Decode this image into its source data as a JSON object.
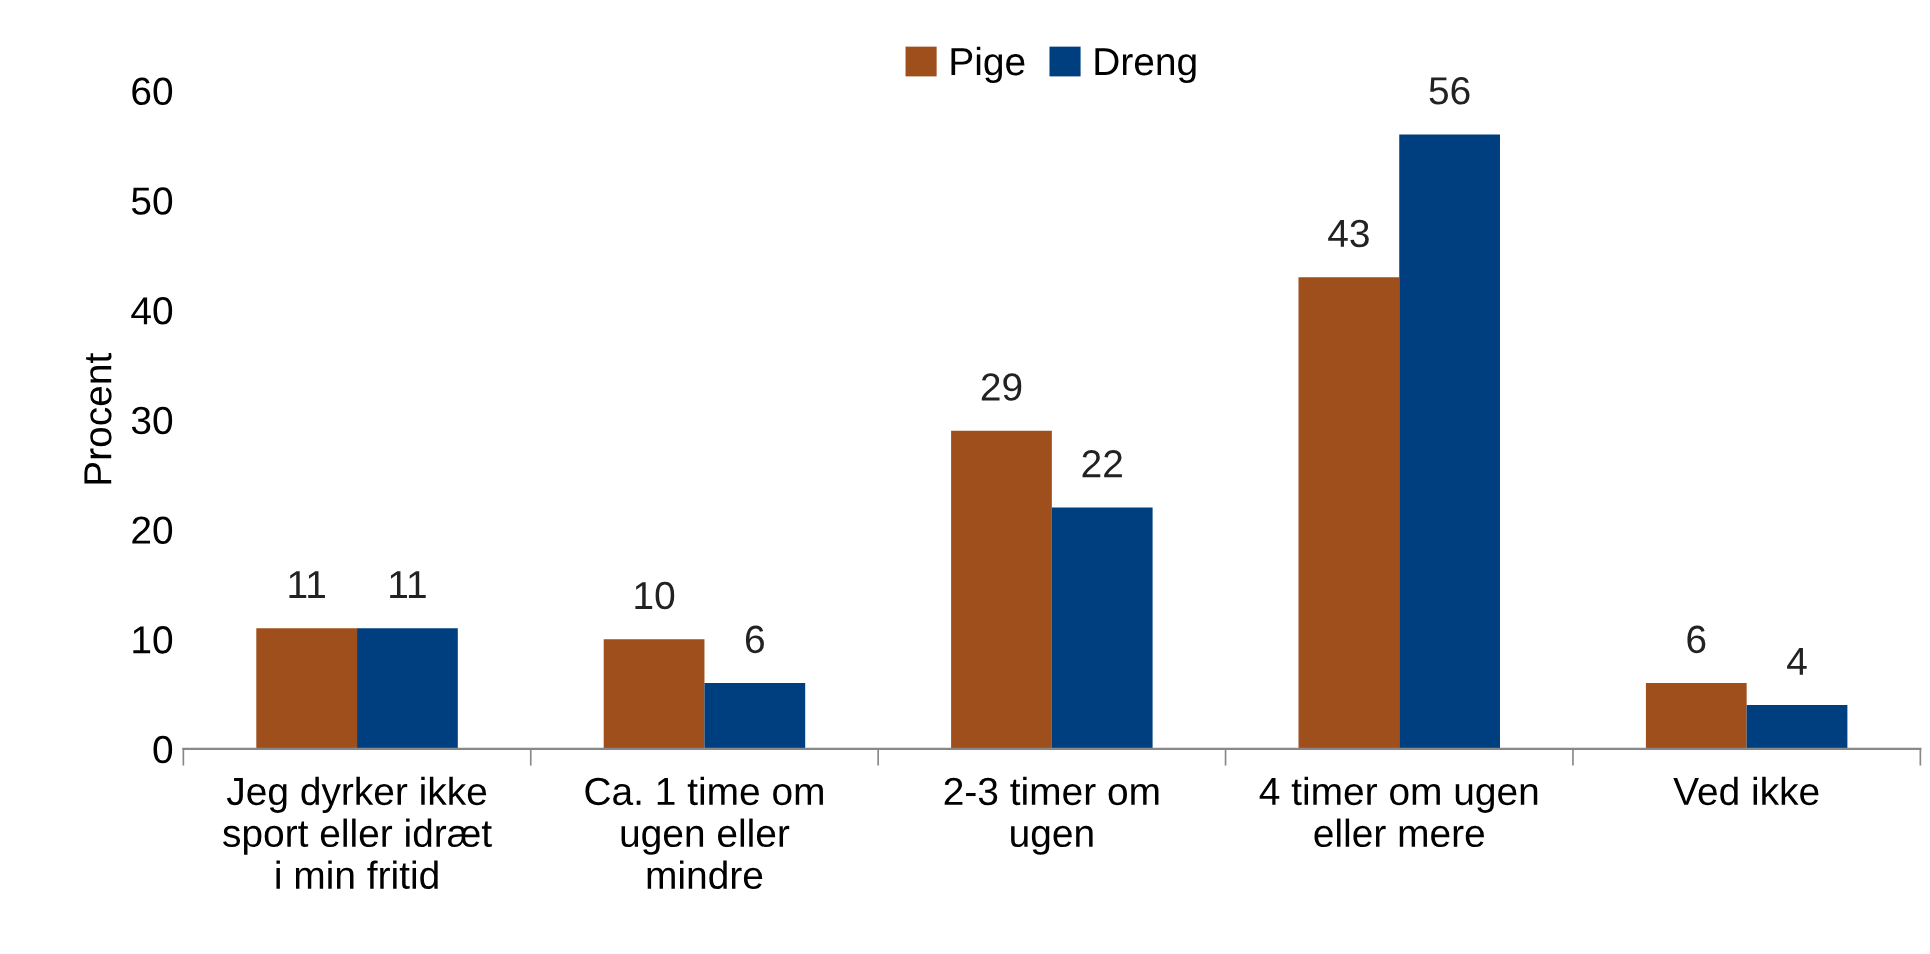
{
  "chart_data": {
    "type": "bar",
    "ylabel": "Procent",
    "categories": [
      "Jeg dyrker ikke\nsport eller idræt\ni min fritid",
      "Ca. 1 time om\nugen eller\nmindre",
      "2-3 timer om\nugen",
      "4 timer om ugen\neller mere",
      "Ved ikke"
    ],
    "series": [
      {
        "name": "Pige",
        "color": "#9e4f1c",
        "values": [
          11,
          10,
          29,
          43,
          6
        ]
      },
      {
        "name": "Dreng",
        "color": "#003f7f",
        "values": [
          11,
          6,
          22,
          56,
          4
        ]
      }
    ],
    "ylim": [
      0,
      60
    ],
    "yticks": [
      0,
      10,
      20,
      30,
      40,
      50,
      60
    ],
    "data_labels": true,
    "legend": "top",
    "grid": false
  }
}
